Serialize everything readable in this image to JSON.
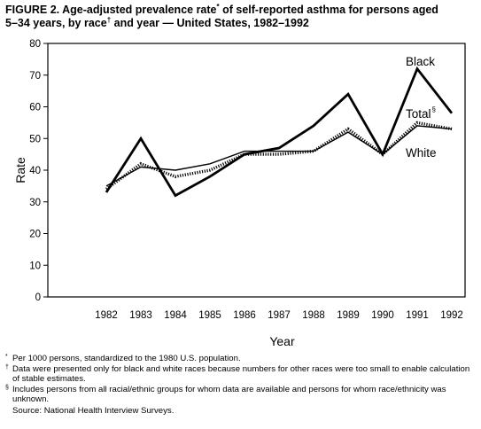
{
  "title": {
    "line1_prefix": "FIGURE 2. Age-adjusted prevalence rate",
    "line1_sym": "*",
    "line1_suffix": " of self-reported asthma for persons aged",
    "line2_prefix": "5–34 years, by race",
    "line2_sym": "†",
    "line2_suffix": " and year — United States, 1982–1992"
  },
  "chart_data": {
    "type": "line",
    "xlabel": "Year",
    "ylabel": "Rate",
    "ylim": [
      0,
      80
    ],
    "yticks": [
      0,
      10,
      20,
      30,
      40,
      50,
      60,
      70,
      80
    ],
    "grid": false,
    "x": [
      "1982",
      "1983",
      "1984",
      "1985",
      "1986",
      "1987",
      "1988",
      "1989",
      "1990",
      "1991",
      "1992"
    ],
    "series": [
      {
        "name": "Black",
        "style": "solid-thick",
        "color": "#000000",
        "values": [
          33,
          50,
          32,
          38,
          45,
          47,
          54,
          64,
          45,
          72,
          58
        ]
      },
      {
        "name": "Total",
        "label_sym": "§",
        "style": "dotted-thick",
        "color": "#000000",
        "values": [
          34,
          42,
          38,
          40,
          45,
          45,
          46,
          53,
          45,
          55,
          53
        ]
      },
      {
        "name": "White",
        "style": "solid",
        "color": "#000000",
        "values": [
          35,
          41,
          40,
          42,
          46,
          46,
          46,
          52,
          45,
          54,
          53
        ]
      }
    ]
  },
  "footnotes": [
    {
      "sym": "*",
      "text": "Per 1000 persons, standardized to the 1980 U.S. population."
    },
    {
      "sym": "†",
      "text": "Data were presented only for black and white races because numbers for other races were too small to enable calculation of stable estimates."
    },
    {
      "sym": "§",
      "text": "Includes persons from all racial/ethnic groups for whom data are available and persons for whom race/ethnicity was unknown."
    }
  ],
  "source": "Source: National Health Interview Surveys."
}
